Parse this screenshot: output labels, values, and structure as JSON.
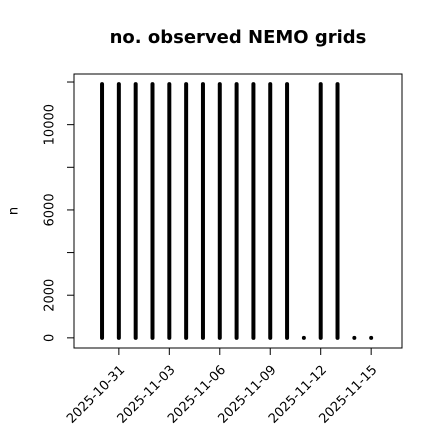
{
  "chart_data": {
    "type": "bar",
    "title": "no. observed NEMO grids",
    "y_label": "n",
    "x": [
      "2025-10-30",
      "2025-10-31",
      "2025-11-01",
      "2025-11-02",
      "2025-11-03",
      "2025-11-04",
      "2025-11-05",
      "2025-11-06",
      "2025-11-07",
      "2025-11-08",
      "2025-11-09",
      "2025-11-10",
      "2025-11-11",
      "2025-11-12",
      "2025-11-13",
      "2025-11-14",
      "2025-11-15"
    ],
    "values": [
      11900,
      11900,
      11900,
      11900,
      11900,
      11900,
      11900,
      11900,
      11900,
      11900,
      11900,
      11900,
      0,
      11900,
      11900,
      0,
      0
    ],
    "color": "#000000",
    "xlim": [
      "2025-10-28T08:00Z",
      "2025-11-16T20:00Z"
    ],
    "xticks": [
      "2025-10-31",
      "2025-11-03",
      "2025-11-06",
      "2025-11-09",
      "2025-11-12",
      "2025-11-15"
    ],
    "ylim": [
      -476,
      12376
    ],
    "yticks": [
      0,
      2000,
      {
        "value": 4000,
        "label": null
      },
      6000,
      {
        "value": 8000,
        "label": null
      },
      10000,
      {
        "value": 12000,
        "label": null
      }
    ]
  }
}
